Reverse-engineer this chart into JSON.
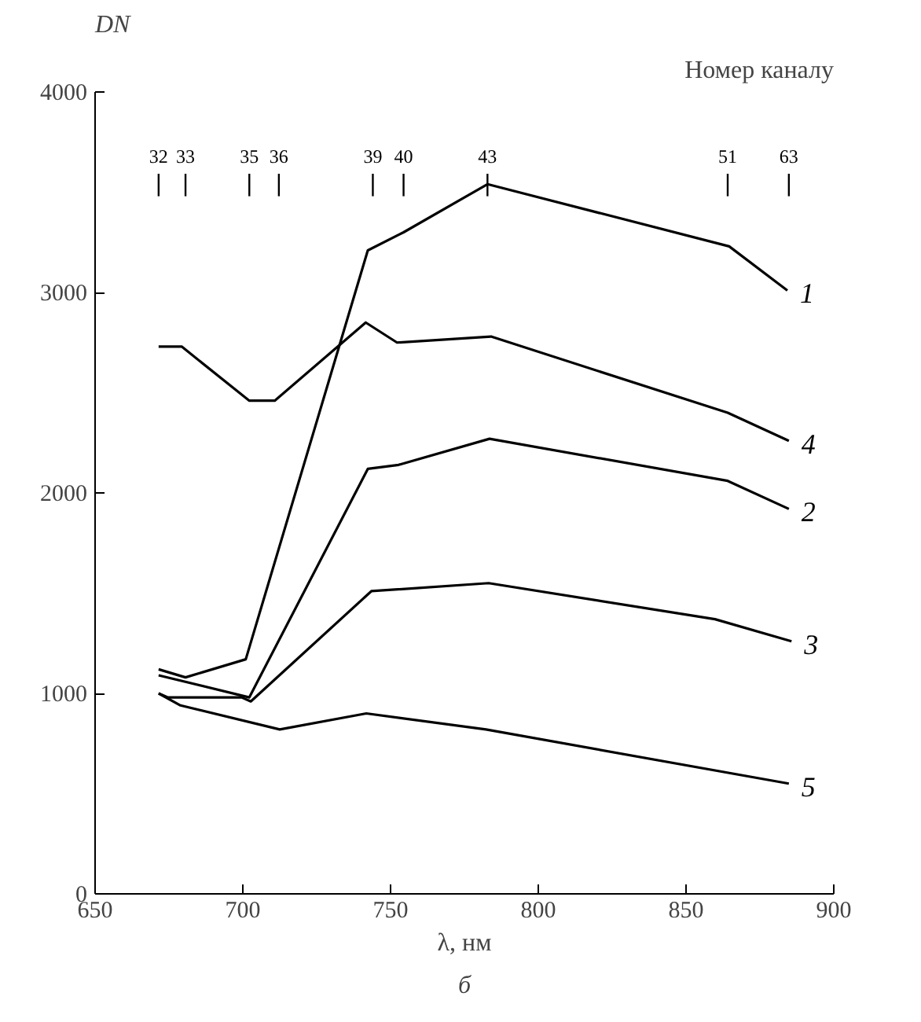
{
  "chart_data": {
    "type": "line",
    "ylabel": "DN",
    "xlabel": "λ, нм",
    "annotations": [
      "Номер каналу",
      {
        "text": "32",
        "x": 671.5
      },
      {
        "text": "33",
        "x": 680.6
      },
      {
        "text": "35",
        "x": 702.2
      },
      {
        "text": "36",
        "x": 712.2
      },
      {
        "text": "39",
        "x": 744
      },
      {
        "text": "40",
        "x": 754.4
      },
      {
        "text": "43",
        "x": 782.8
      },
      {
        "text": "51",
        "x": 864.1
      },
      {
        "text": "63",
        "x": 884.8
      },
      "б"
    ],
    "xlim": [
      650,
      900
    ],
    "xticks": [
      650,
      700,
      750,
      800,
      850,
      900
    ],
    "ylim": [
      0,
      4000
    ],
    "yticks": [
      0,
      1000,
      2000,
      3000,
      4000
    ],
    "grid": false,
    "marker": "none",
    "line_style": "solid",
    "series": [
      {
        "name": "1",
        "color": "#000000",
        "x": [
          671.5,
          680.6,
          701,
          742.3,
          754.4,
          782.8,
          864.6,
          884.3
        ],
        "values": [
          1120,
          1080,
          1170,
          3210,
          3300,
          3540,
          3230,
          3010
        ]
      },
      {
        "name": "4",
        "color": "#000000",
        "x": [
          671.5,
          679.3,
          702.2,
          710.8,
          741.6,
          752.2,
          784,
          864.1,
          884.8
        ],
        "values": [
          2730,
          2730,
          2460,
          2460,
          2850,
          2750,
          2780,
          2400,
          2260
        ]
      },
      {
        "name": "2",
        "color": "#000000",
        "x": [
          671.5,
          702.2,
          742.3,
          752.7,
          783.5,
          864.1,
          884.8
        ],
        "values": [
          1090,
          980,
          2120,
          2140,
          2270,
          2060,
          1920
        ]
      },
      {
        "name": "3",
        "color": "#000000",
        "x": [
          671.5,
          674.7,
          699.6,
          702.7,
          743.5,
          783.2,
          859.8,
          885.7
        ],
        "values": [
          1000,
          980,
          980,
          960,
          1510,
          1550,
          1370,
          1260
        ]
      },
      {
        "name": "5",
        "color": "#000000",
        "x": [
          671.5,
          678.9,
          712.5,
          741.8,
          782.3,
          884.8
        ],
        "values": [
          1000,
          940,
          820,
          900,
          820,
          550
        ]
      }
    ]
  }
}
